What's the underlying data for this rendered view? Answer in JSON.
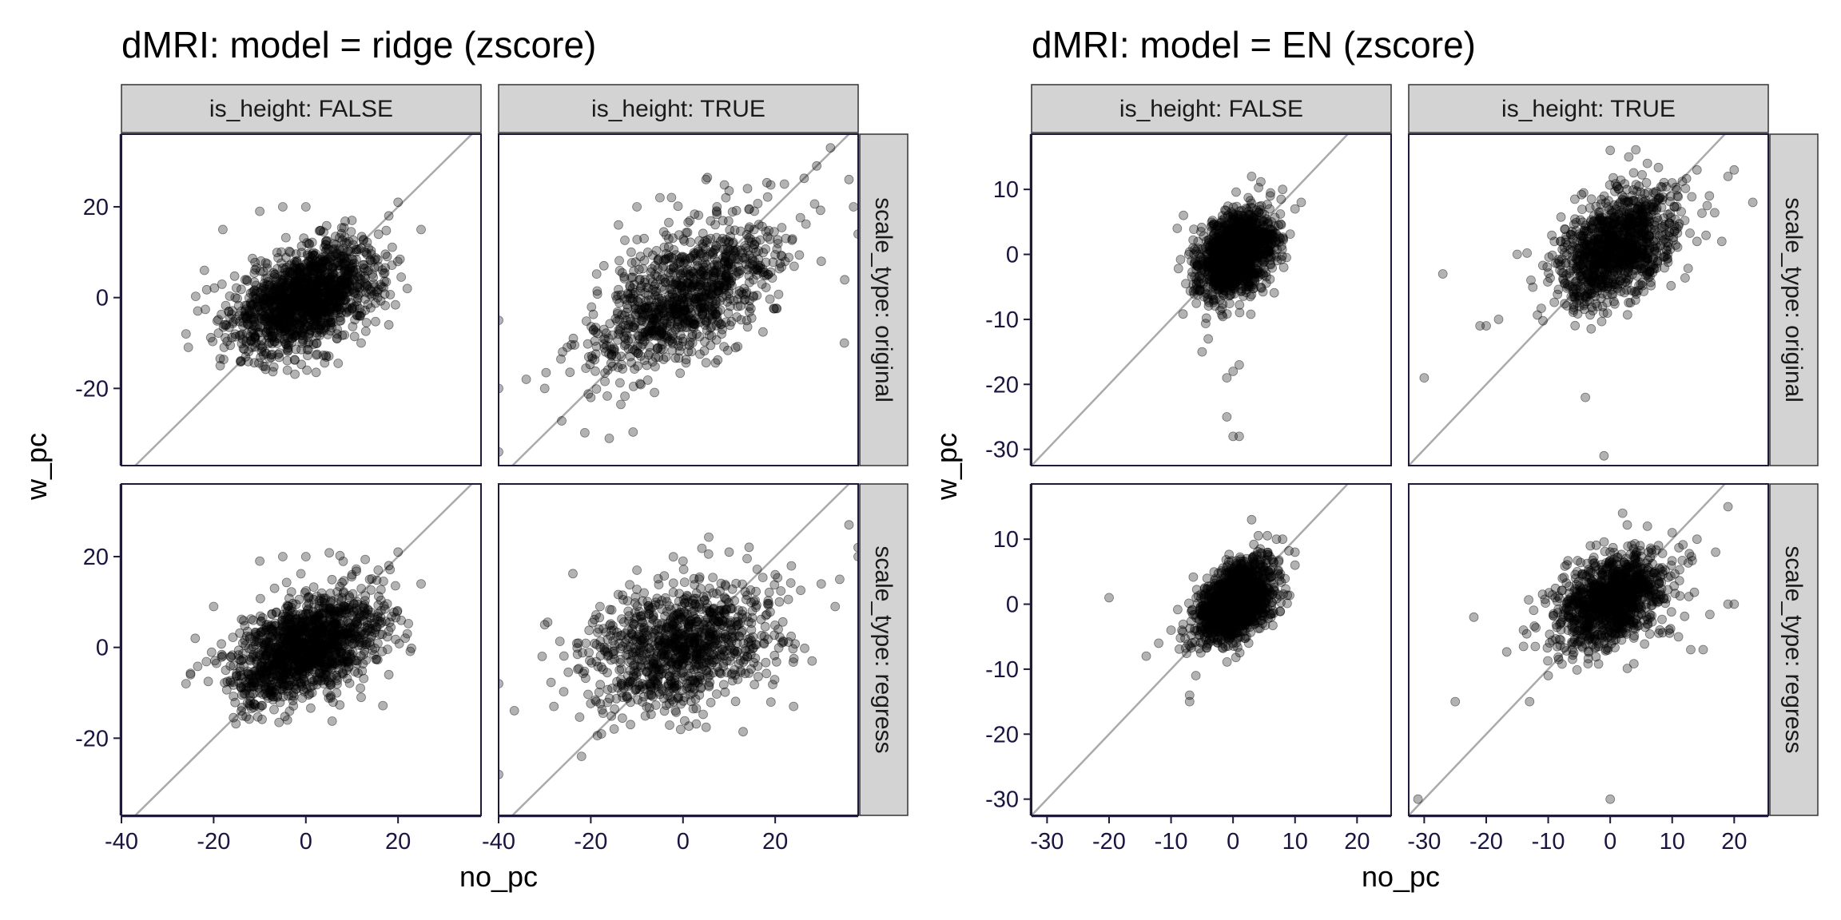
{
  "chart_data": [
    {
      "type": "scatter",
      "title": "dMRI: model = ridge (zscore)",
      "xlabel": "no_pc",
      "ylabel": "w_pc",
      "xlim": [
        -40,
        38
      ],
      "ylim": [
        -37,
        36
      ],
      "xticks": [
        "-40",
        "-20",
        "0",
        "20"
      ],
      "yticks": [
        "-20",
        "0",
        "20"
      ],
      "col_strips": [
        "is_height: FALSE",
        "is_height: TRUE"
      ],
      "row_strips": [
        "scale_type: original",
        "scale_type: regress"
      ],
      "reference_line": "y = x",
      "grid": false,
      "point_color": "#000000",
      "point_alpha": 0.3,
      "line_color": "#aaaaaa",
      "panels": [
        {
          "col": 0,
          "row": 0,
          "n": 1400,
          "mean": [
            0,
            0
          ],
          "sd": [
            8,
            6
          ],
          "rho": 0.45,
          "range": [
            -27,
            27,
            -17,
            21
          ],
          "extra": [
            [
              -26,
              -8
            ],
            [
              -22,
              6
            ],
            [
              -18,
              15
            ],
            [
              -14,
              -14
            ],
            [
              -10,
              19
            ],
            [
              -5,
              20
            ],
            [
              0,
              20
            ],
            [
              10,
              17
            ],
            [
              18,
              18
            ],
            [
              20,
              21
            ],
            [
              25,
              15
            ],
            [
              22,
              2
            ],
            [
              18,
              -6
            ],
            [
              12,
              -10
            ],
            [
              -4,
              -16
            ]
          ]
        },
        {
          "col": 1,
          "row": 0,
          "n": 1000,
          "mean": [
            0,
            0
          ],
          "sd": [
            10,
            8
          ],
          "rho": 0.55,
          "range": [
            -40,
            38,
            -32,
            34
          ],
          "extra": [
            [
              -40,
              -5
            ],
            [
              -40,
              -20
            ],
            [
              -40,
              -34
            ],
            [
              -34,
              -18
            ],
            [
              -30,
              -20
            ],
            [
              -20,
              -22
            ],
            [
              -16,
              -31
            ],
            [
              -14,
              16
            ],
            [
              -10,
              20
            ],
            [
              -5,
              22
            ],
            [
              5,
              26
            ],
            [
              14,
              24
            ],
            [
              22,
              25
            ],
            [
              29,
              29
            ],
            [
              32,
              33
            ],
            [
              36,
              26
            ],
            [
              37,
              20
            ],
            [
              38,
              14
            ],
            [
              30,
              8
            ],
            [
              35,
              -10
            ]
          ]
        },
        {
          "col": 0,
          "row": 1,
          "n": 1400,
          "mean": [
            0,
            0
          ],
          "sd": [
            8,
            6
          ],
          "rho": 0.45,
          "range": [
            -27,
            27,
            -17,
            21
          ],
          "extra": [
            [
              -26,
              -8
            ],
            [
              -25,
              -6
            ],
            [
              -24,
              2
            ],
            [
              -20,
              9
            ],
            [
              -14,
              -14
            ],
            [
              -10,
              19
            ],
            [
              -5,
              20
            ],
            [
              0,
              20
            ],
            [
              10,
              16
            ],
            [
              18,
              18
            ],
            [
              20,
              21
            ],
            [
              25,
              14
            ],
            [
              22,
              3
            ],
            [
              18,
              -6
            ],
            [
              12,
              -11
            ],
            [
              -4,
              -16
            ]
          ]
        },
        {
          "col": 1,
          "row": 1,
          "n": 1000,
          "mean": [
            0,
            0
          ],
          "sd": [
            10,
            7
          ],
          "rho": 0.3,
          "range": [
            -40,
            38,
            -29,
            30
          ],
          "extra": [
            [
              -40,
              -8
            ],
            [
              -40,
              -28
            ],
            [
              -30,
              5
            ],
            [
              -28,
              -13
            ],
            [
              -22,
              -24
            ],
            [
              -18,
              9
            ],
            [
              -10,
              17
            ],
            [
              0,
              19
            ],
            [
              10,
              21
            ],
            [
              20,
              16
            ],
            [
              30,
              14
            ],
            [
              34,
              15
            ],
            [
              36,
              27
            ],
            [
              38,
              20
            ],
            [
              38,
              22
            ],
            [
              33,
              9
            ],
            [
              28,
              -3
            ],
            [
              24,
              -13
            ]
          ]
        }
      ]
    },
    {
      "type": "scatter",
      "title": "dMRI: model = EN (zscore)",
      "xlabel": "no_pc",
      "ylabel": "w_pc",
      "xlim": [
        -32.5,
        25.5
      ],
      "ylim": [
        -32.5,
        18.5
      ],
      "xticks": [
        "-30",
        "-20",
        "-10",
        "0",
        "10",
        "20"
      ],
      "yticks": [
        "-30",
        "-20",
        "-10",
        "0",
        "10"
      ],
      "col_strips": [
        "is_height: FALSE",
        "is_height: TRUE"
      ],
      "row_strips": [
        "scale_type: original",
        "scale_type: regress"
      ],
      "reference_line": "y = x",
      "grid": false,
      "point_color": "#000000",
      "point_alpha": 0.3,
      "line_color": "#aaaaaa",
      "panels": [
        {
          "col": 0,
          "row": 0,
          "n": 1500,
          "mean": [
            0.5,
            0
          ],
          "sd": [
            3,
            3.2
          ],
          "rho": 0.35,
          "range": [
            -9,
            11,
            -17,
            12
          ],
          "extra": [
            [
              0,
              -28
            ],
            [
              1,
              -28
            ],
            [
              -1,
              -25
            ],
            [
              0,
              -18
            ],
            [
              1,
              -17
            ],
            [
              -1,
              -19
            ],
            [
              -5,
              -15
            ],
            [
              -4,
              -13
            ],
            [
              10,
              7
            ],
            [
              11,
              8
            ],
            [
              8,
              10
            ],
            [
              3,
              12
            ],
            [
              -8,
              6
            ],
            [
              -9,
              4
            ],
            [
              6,
              9
            ]
          ]
        },
        {
          "col": 1,
          "row": 0,
          "n": 1100,
          "mean": [
            1,
            1
          ],
          "sd": [
            4.5,
            4.2
          ],
          "rho": 0.4,
          "range": [
            -18,
            20,
            -22,
            17
          ],
          "extra": [
            [
              -30,
              -19
            ],
            [
              -27,
              -3
            ],
            [
              -21,
              -11
            ],
            [
              -20,
              -11
            ],
            [
              -18,
              -10
            ],
            [
              -15,
              0
            ],
            [
              -9,
              2
            ],
            [
              -4,
              -22
            ],
            [
              -1,
              -31
            ],
            [
              0,
              16
            ],
            [
              3,
              15
            ],
            [
              6,
              14
            ],
            [
              10,
              11
            ],
            [
              14,
              13
            ],
            [
              14,
              2
            ],
            [
              18,
              2
            ],
            [
              20,
              13
            ],
            [
              23,
              8
            ],
            [
              19,
              12
            ],
            [
              16,
              9
            ]
          ]
        },
        {
          "col": 0,
          "row": 1,
          "n": 1500,
          "mean": [
            0.5,
            0.5
          ],
          "sd": [
            3,
            3
          ],
          "rho": 0.45,
          "range": [
            -9,
            10,
            -14,
            13
          ],
          "extra": [
            [
              -20,
              1
            ],
            [
              -14,
              -8
            ],
            [
              -12,
              -6
            ],
            [
              -10,
              -4
            ],
            [
              -7,
              -14
            ],
            [
              -7,
              -15
            ],
            [
              -6,
              -11
            ],
            [
              8,
              10
            ],
            [
              10,
              6
            ],
            [
              10,
              8
            ],
            [
              3,
              13
            ],
            [
              7,
              10
            ]
          ]
        },
        {
          "col": 1,
          "row": 1,
          "n": 1100,
          "mean": [
            0.5,
            0.5
          ],
          "sd": [
            4.5,
            3.5
          ],
          "rho": 0.35,
          "range": [
            -20,
            20,
            -15,
            15
          ],
          "extra": [
            [
              -31,
              -30
            ],
            [
              -25,
              -15
            ],
            [
              -22,
              -2
            ],
            [
              -13,
              -15
            ],
            [
              -10,
              -11
            ],
            [
              0,
              -30
            ],
            [
              2,
              14
            ],
            [
              6,
              12
            ],
            [
              10,
              11
            ],
            [
              14,
              10
            ],
            [
              17,
              8
            ],
            [
              19,
              15
            ],
            [
              19,
              0
            ],
            [
              20,
              0
            ],
            [
              15,
              -7
            ],
            [
              13,
              -7
            ]
          ]
        }
      ]
    }
  ]
}
